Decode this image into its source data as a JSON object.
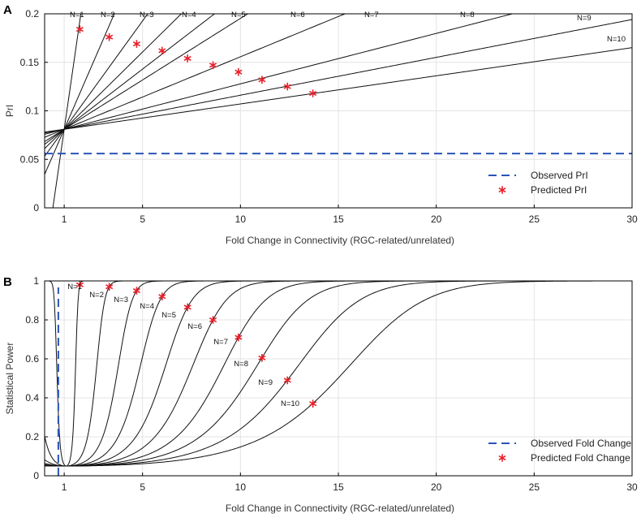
{
  "chart_data": [
    {
      "panel": "A",
      "type": "line",
      "xlabel": "Fold Change in Connectivity (RGC-related/unrelated)",
      "ylabel": "PrI",
      "xlim": [
        0,
        30
      ],
      "ylim": [
        0,
        0.2
      ],
      "xticks": [
        1,
        5,
        10,
        15,
        20,
        25,
        30
      ],
      "yticks": [
        0,
        0.05,
        0.1,
        0.15,
        0.2
      ],
      "ytick_labels": [
        "0",
        "0.05",
        "0.1",
        "0.15",
        "0.2"
      ],
      "pivot": {
        "x": 1,
        "y": 0.081
      },
      "series_labels": [
        "N=1",
        "N=2",
        "N=3",
        "N=4",
        "N=5",
        "N=6",
        "N=7",
        "N=8",
        "N=9",
        "N=10"
      ],
      "line_slopes": [
        0.14,
        0.0465,
        0.0279,
        0.0199,
        0.0155,
        0.0127,
        0.0083,
        0.0052,
        0.0039,
        0.0029
      ],
      "observed": {
        "name": "Observed PrI",
        "value": 0.056
      },
      "predicted": {
        "name": "Predicted PrI",
        "x": [
          1.8,
          3.3,
          4.7,
          6.0,
          7.3,
          8.6,
          9.9,
          11.1,
          12.4,
          13.7
        ],
        "y": [
          0.184,
          0.176,
          0.169,
          0.162,
          0.154,
          0.147,
          0.14,
          0.132,
          0.125,
          0.118
        ]
      },
      "legend": [
        "Observed PrI",
        "Predicted PrI"
      ],
      "legend_position": "lower-right"
    },
    {
      "panel": "B",
      "type": "line",
      "xlabel": "Fold Change in Connectivity (RGC-related/unrelated)",
      "ylabel": "Statistical Power",
      "xlim": [
        0,
        30
      ],
      "ylim": [
        0,
        1
      ],
      "xticks": [
        1,
        5,
        10,
        15,
        20,
        25,
        30
      ],
      "yticks": [
        0,
        0.2,
        0.4,
        0.6,
        0.8,
        1
      ],
      "ytick_labels": [
        "0",
        "0.2",
        "0.4",
        "0.6",
        "0.8",
        "1"
      ],
      "series_labels": [
        "N=1",
        "N=2",
        "N=3",
        "N=4",
        "N=5",
        "N=6",
        "N=7",
        "N=8",
        "N=9",
        "N=10"
      ],
      "baseline_power": 0.05,
      "observed": {
        "name": "Observed Fold Change",
        "value": 0.7
      },
      "predicted": {
        "name": "Predicted Fold Change",
        "x": [
          1.8,
          3.3,
          4.7,
          6.0,
          7.3,
          8.6,
          9.9,
          11.1,
          12.4,
          13.7
        ],
        "y": [
          0.98,
          0.97,
          0.95,
          0.92,
          0.865,
          0.8,
          0.71,
          0.605,
          0.49,
          0.37
        ]
      },
      "legend": [
        "Observed Fold Change",
        "Predicted Fold Change"
      ],
      "legend_position": "lower-right"
    }
  ]
}
